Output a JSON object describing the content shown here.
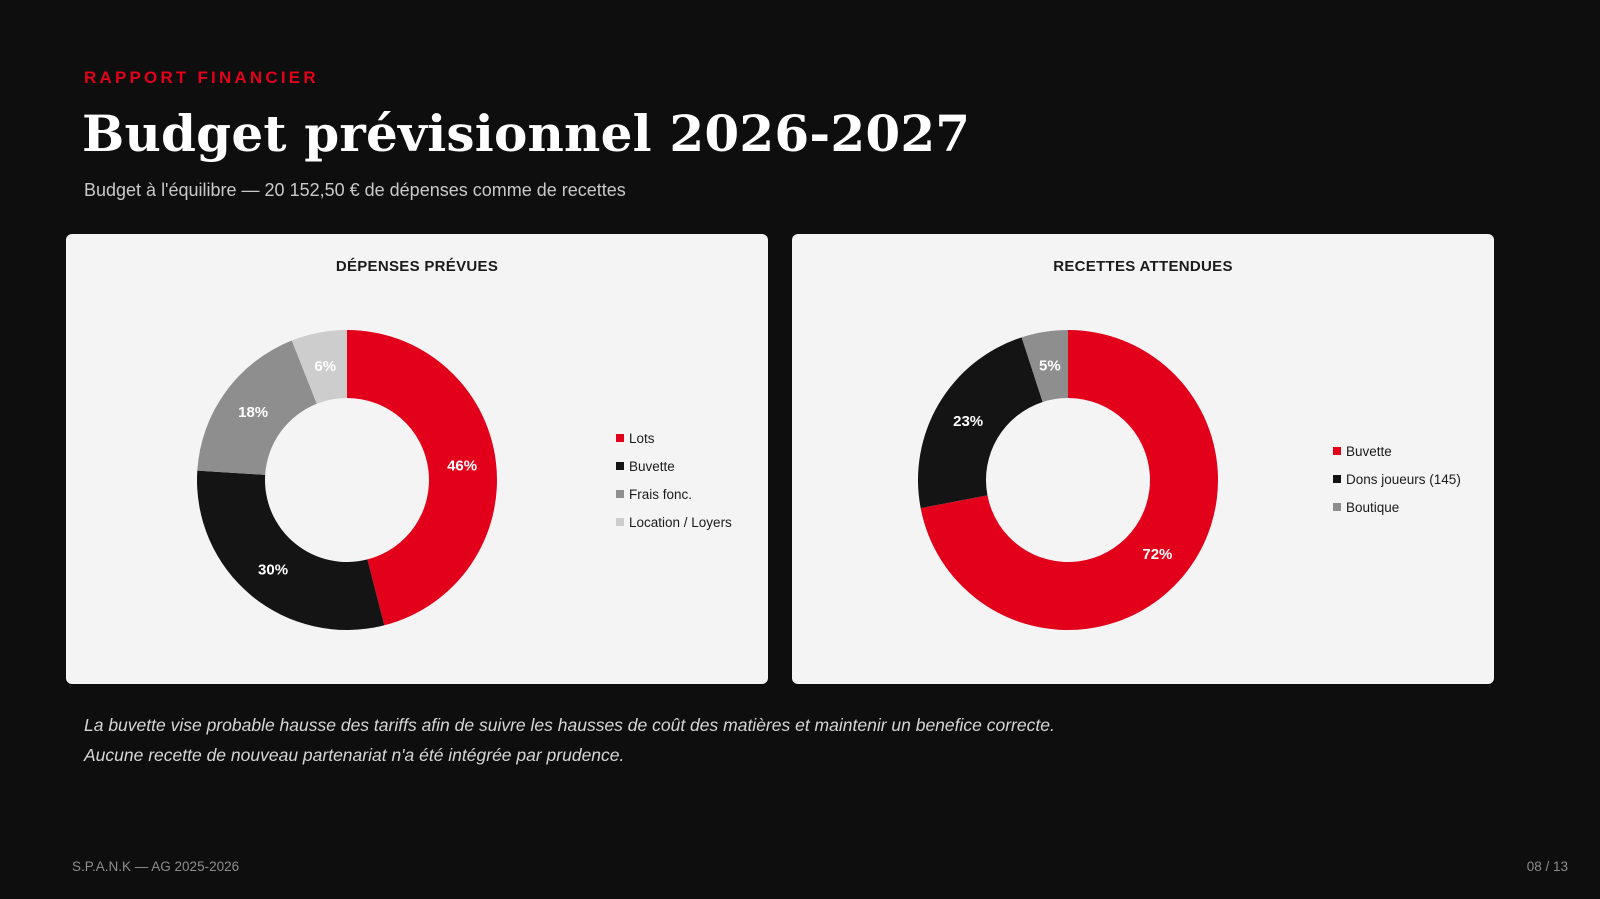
{
  "header": {
    "kicker": "RAPPORT FINANCIER",
    "title": "Budget prévisionnel 2026-2027",
    "subtitle": "Budget à l'équilibre — 20 152,50 € de dépenses comme de recettes"
  },
  "chart_data": [
    {
      "type": "pie",
      "donut": true,
      "title": "DÉPENSES PRÉVUES",
      "legend_position": "right",
      "categories": [
        "Lots",
        "Buvette",
        "Frais fonc.",
        "Location / Loyers"
      ],
      "values": [
        46,
        30,
        18,
        6
      ],
      "labels": [
        "46%",
        "30%",
        "18%",
        "6%"
      ],
      "colors": [
        "#e2001a",
        "#141414",
        "#8e8e8e",
        "#cdcdcd"
      ]
    },
    {
      "type": "pie",
      "donut": true,
      "title": "RECETTES ATTENDUES",
      "legend_position": "right",
      "categories": [
        "Buvette",
        "Dons joueurs (145)",
        "Boutique"
      ],
      "values": [
        72,
        23,
        5
      ],
      "labels": [
        "72%",
        "23%",
        "5%"
      ],
      "colors": [
        "#e2001a",
        "#141414",
        "#8e8e8e"
      ]
    }
  ],
  "notes": [
    "La buvette vise probable hausse des tariffs afin de suivre les hausses de coût des matières et maintenir un benefice correcte.",
    "Aucune recette de nouveau partenariat n'a été intégrée par prudence."
  ],
  "footer": {
    "left": "S.P.A.N.K — AG 2025-2026",
    "page": "08 / 13"
  }
}
